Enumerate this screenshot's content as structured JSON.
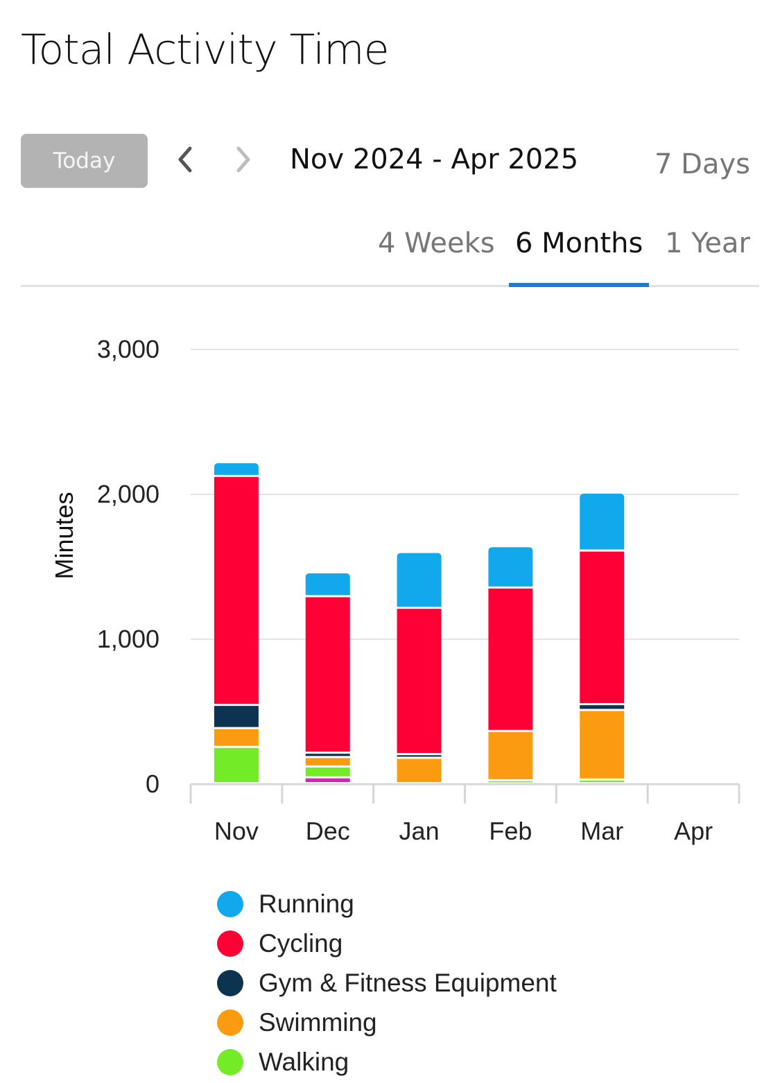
{
  "page_title": "Total Activity Time",
  "toolbar": {
    "today_label": "Today",
    "range_label": "Nov 2024 - Apr 2025"
  },
  "icons": {
    "prev": "chevron-left-icon",
    "next": "chevron-right-icon"
  },
  "periods": {
    "days7": "7 Days",
    "weeks4": "4 Weeks",
    "months6": "6 Months",
    "year1": "1 Year",
    "selected": "6 Months"
  },
  "colors": {
    "accent": "#1f7ad3",
    "Running": "#12a8ec",
    "Cycling": "#ff0036",
    "Gym & Fitness Equipment": "#0c3350",
    "Swimming": "#fb9c10",
    "Walking": "#73eb26",
    "Other": "#d223b3"
  },
  "chart_data": {
    "type": "bar",
    "stacked": true,
    "ylabel": "Minutes",
    "xlabel": "",
    "ylim": [
      0,
      3000
    ],
    "yticks": [
      0,
      1000,
      2000,
      3000
    ],
    "ytick_labels": [
      "0",
      "1,000",
      "2,000",
      "3,000"
    ],
    "grid": true,
    "categories": [
      "Nov",
      "Dec",
      "Jan",
      "Feb",
      "Mar",
      "Apr"
    ],
    "series": [
      {
        "name": "",
        "color_key": "Other",
        "values": [
          0,
          40,
          0,
          0,
          0,
          0
        ]
      },
      {
        "name": "Walking",
        "values": [
          250,
          75,
          0,
          20,
          25,
          0
        ]
      },
      {
        "name": "Swimming",
        "values": [
          130,
          65,
          175,
          340,
          480,
          0
        ]
      },
      {
        "name": "Gym & Fitness Equipment",
        "values": [
          160,
          30,
          25,
          0,
          40,
          0
        ]
      },
      {
        "name": "Cycling",
        "values": [
          1580,
          1080,
          1010,
          990,
          1060,
          0
        ]
      },
      {
        "name": "Running",
        "values": [
          95,
          165,
          385,
          285,
          400,
          0
        ]
      }
    ],
    "legend": [
      "Running",
      "Cycling",
      "Gym & Fitness Equipment",
      "Swimming",
      "Walking"
    ],
    "legend_position": "bottom"
  }
}
